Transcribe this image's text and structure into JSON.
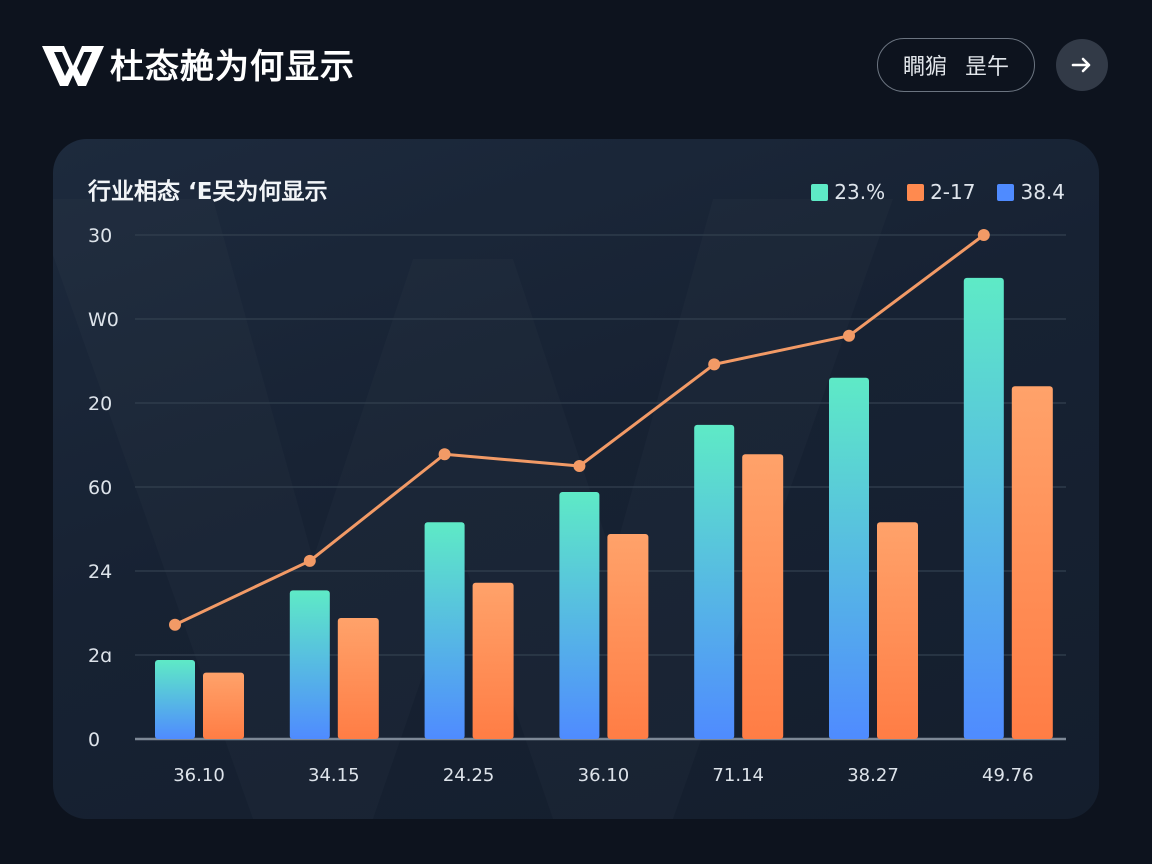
{
  "header": {
    "title": "杜态赩为何显示",
    "logo_icon": "wps-w-logo-icon",
    "pill_button": {
      "label_left": "瞷猏",
      "label_right": "昰午"
    },
    "next_button": {
      "icon": "arrow-right-icon"
    }
  },
  "colors": {
    "background": "#0d131e",
    "card": "#1a2638",
    "teal": "#5eeac6",
    "blue": "#4f8bff",
    "orange_top": "#ffa26a",
    "orange_bottom": "#ff7d45",
    "line": "#f29a66",
    "grid": "#33404f"
  },
  "card": {
    "title": "行业相态 ‘E㕦为何显示",
    "legend": [
      {
        "label": "23.%",
        "color": "#5eeac6"
      },
      {
        "label": "2-17",
        "color": "#ff8a4f"
      },
      {
        "label": "38.4",
        "color": "#4f8bff"
      }
    ]
  },
  "chart_data": {
    "type": "bar",
    "title": "行业相态 ‘E㕦为何显示",
    "xlabel": "",
    "ylabel": "",
    "categories": [
      "36.10",
      "34.15",
      "24.25",
      "36.10",
      "71.14",
      "38.27",
      "49.76"
    ],
    "y_tick_labels": [
      "0",
      "2ɑ",
      "24",
      "60",
      "20",
      "W0",
      "30"
    ],
    "ylim": [
      0,
      6
    ],
    "grid": true,
    "legend_position": "top-right",
    "series": [
      {
        "name": "23.%",
        "kind": "bar",
        "color_gradient": [
          "#5eeac6",
          "#4f8bff"
        ],
        "values": [
          0.94,
          1.77,
          2.58,
          2.94,
          3.74,
          4.3,
          5.49
        ]
      },
      {
        "name": "2-17",
        "kind": "bar",
        "color_gradient": [
          "#ffa26a",
          "#ff7d45"
        ],
        "values": [
          0.79,
          1.44,
          1.86,
          2.44,
          3.39,
          2.58,
          4.2
        ]
      },
      {
        "name": "38.4",
        "kind": "line",
        "color": "#f29a66",
        "values": [
          1.36,
          2.12,
          3.39,
          3.25,
          4.46,
          4.8,
          6.0
        ]
      }
    ]
  }
}
